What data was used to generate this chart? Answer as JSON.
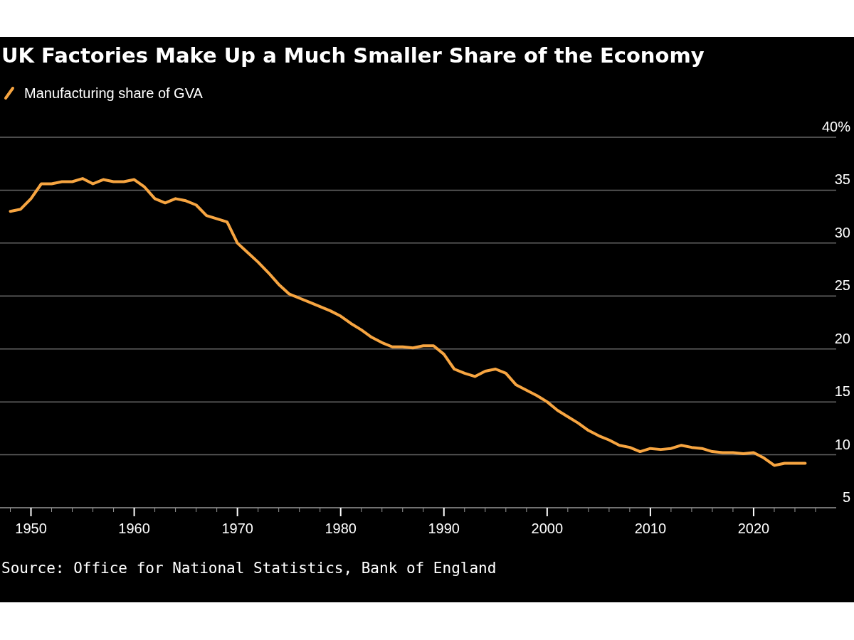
{
  "chart_data": {
    "type": "line",
    "title": "UK Factories Make Up a Much Smaller Share of the Economy",
    "x": [
      1948,
      1949,
      1950,
      1951,
      1952,
      1953,
      1954,
      1955,
      1956,
      1957,
      1958,
      1959,
      1960,
      1961,
      1962,
      1963,
      1964,
      1965,
      1966,
      1967,
      1968,
      1969,
      1970,
      1971,
      1972,
      1973,
      1974,
      1975,
      1976,
      1977,
      1978,
      1979,
      1980,
      1981,
      1982,
      1983,
      1984,
      1985,
      1986,
      1987,
      1988,
      1989,
      1990,
      1991,
      1992,
      1993,
      1994,
      1995,
      1996,
      1997,
      1998,
      1999,
      2000,
      2001,
      2002,
      2003,
      2004,
      2005,
      2006,
      2007,
      2008,
      2009,
      2010,
      2011,
      2012,
      2013,
      2014,
      2015,
      2016,
      2017,
      2018,
      2019,
      2020,
      2021,
      2022,
      2023,
      2024,
      2025
    ],
    "series": [
      {
        "name": "Manufacturing share of GVA",
        "color": "#f7a541",
        "values": [
          33.0,
          33.2,
          34.2,
          35.6,
          35.6,
          35.8,
          35.8,
          36.1,
          35.6,
          36.0,
          35.8,
          35.8,
          36.0,
          35.3,
          34.2,
          33.8,
          34.2,
          34.0,
          33.6,
          32.6,
          32.3,
          32.0,
          30.0,
          29.1,
          28.2,
          27.2,
          26.1,
          25.2,
          24.8,
          24.4,
          24.0,
          23.6,
          23.1,
          22.4,
          21.8,
          21.1,
          20.6,
          20.2,
          20.2,
          20.1,
          20.3,
          20.3,
          19.5,
          18.1,
          17.7,
          17.4,
          17.9,
          18.1,
          17.7,
          16.6,
          16.1,
          15.6,
          15.0,
          14.2,
          13.6,
          13.0,
          12.3,
          11.8,
          11.4,
          10.9,
          10.7,
          10.3,
          10.6,
          10.5,
          10.6,
          10.9,
          10.7,
          10.6,
          10.3,
          10.2,
          10.2,
          10.1,
          10.2,
          9.7,
          9.0,
          9.2,
          9.2,
          9.2
        ]
      }
    ],
    "xlim": [
      1947,
      2028
    ],
    "xticks": [
      {
        "value": 1948,
        "label": null
      },
      1950,
      {
        "value": 1952,
        "label": null
      },
      {
        "value": 1954,
        "label": null
      },
      {
        "value": 1956,
        "label": null
      },
      {
        "value": 1958,
        "label": null
      },
      1960,
      {
        "value": 1962,
        "label": null
      },
      {
        "value": 1964,
        "label": null
      },
      {
        "value": 1966,
        "label": null
      },
      {
        "value": 1968,
        "label": null
      },
      1970,
      {
        "value": 1972,
        "label": null
      },
      {
        "value": 1974,
        "label": null
      },
      {
        "value": 1976,
        "label": null
      },
      {
        "value": 1978,
        "label": null
      },
      1980,
      {
        "value": 1982,
        "label": null
      },
      {
        "value": 1984,
        "label": null
      },
      {
        "value": 1986,
        "label": null
      },
      {
        "value": 1988,
        "label": null
      },
      1990,
      {
        "value": 1992,
        "label": null
      },
      {
        "value": 1994,
        "label": null
      },
      {
        "value": 1996,
        "label": null
      },
      {
        "value": 1998,
        "label": null
      },
      2000,
      {
        "value": 2002,
        "label": null
      },
      {
        "value": 2004,
        "label": null
      },
      {
        "value": 2006,
        "label": null
      },
      {
        "value": 2008,
        "label": null
      },
      2010,
      {
        "value": 2012,
        "label": null
      },
      {
        "value": 2014,
        "label": null
      },
      {
        "value": 2016,
        "label": null
      },
      {
        "value": 2018,
        "label": null
      },
      2020,
      {
        "value": 2022,
        "label": null
      },
      {
        "value": 2024,
        "label": null
      },
      {
        "value": 2026,
        "label": null
      }
    ],
    "ylim": [
      5,
      40
    ],
    "yticks": [
      5,
      10,
      15,
      20,
      25,
      30,
      35,
      {
        "value": 40,
        "label": "40%"
      }
    ],
    "grid": "y",
    "legend": "top left",
    "marker": "none",
    "line_style": "solid",
    "annotations": [
      "Source: Office for National Statistics, Bank of England"
    ]
  }
}
